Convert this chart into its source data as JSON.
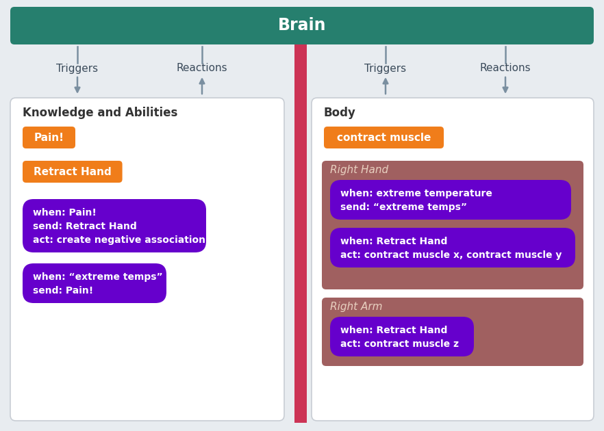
{
  "bg_color": "#e8ecf0",
  "brain_color": "#267f6e",
  "brain_text": "Brain",
  "brain_text_color": "#ffffff",
  "orange_color": "#f07d1a",
  "purple_color": "#6600cc",
  "mauve_color": "#a06060",
  "white_box_color": "#ffffff",
  "white_box_edge": "#c8cdd4",
  "arrow_color": "#7a8fa0",
  "barrier_color": "#cc3355",
  "left_title": "Knowledge and Abilities",
  "right_title": "Body",
  "left_triggers_label": "Triggers",
  "left_reactions_label": "Reactions",
  "right_triggers_label": "Triggers",
  "right_reactions_label": "Reactions",
  "left_orange_items": [
    "Pain!",
    "Retract Hand"
  ],
  "left_purple_items": [
    "when: Pain!\nsend: Retract Hand\nact: create negative association",
    "when: “extreme temps”\nsend: Pain!"
  ],
  "right_orange_items": [
    "contract muscle"
  ],
  "right_hand_title": "Right Hand",
  "right_hand_purple": [
    "when: extreme temperature\nsend: “extreme temps”",
    "when: Retract Hand\nact: contract muscle x, contract muscle y"
  ],
  "right_arm_title": "Right Arm",
  "right_arm_purple": [
    "when: Retract Hand\nact: contract muscle z"
  ],
  "fig_w": 8.82,
  "fig_h": 6.3,
  "dpi": 100
}
